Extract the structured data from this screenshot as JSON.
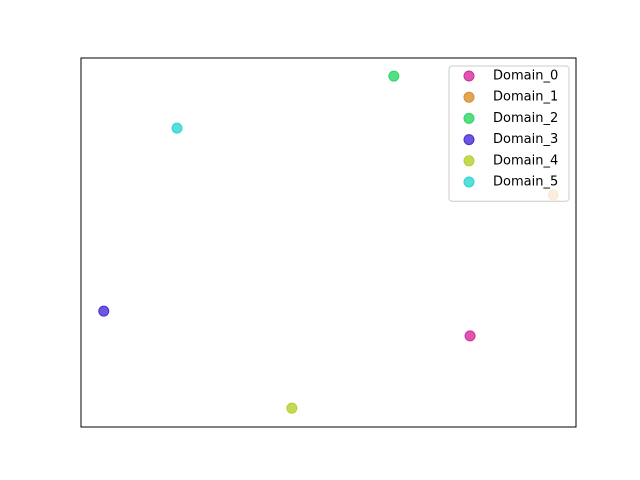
{
  "chart_data": {
    "type": "scatter",
    "xlim": [
      0,
      100
    ],
    "ylim": [
      0,
      100
    ],
    "legend": "upper right",
    "series": [
      {
        "name": "Domain_0",
        "color": "#d62c9b",
        "x": [
          78.6
        ],
        "y": [
          24.7
        ]
      },
      {
        "name": "Domain_1",
        "color": "#d98f2c",
        "x": [
          95.4
        ],
        "y": [
          62.9
        ]
      },
      {
        "name": "Domain_2",
        "color": "#2cd665",
        "x": [
          63.2
        ],
        "y": [
          95.1
        ]
      },
      {
        "name": "Domain_3",
        "color": "#4a2cd6",
        "x": [
          4.6
        ],
        "y": [
          31.4
        ]
      },
      {
        "name": "Domain_4",
        "color": "#b3d12c",
        "x": [
          42.6
        ],
        "y": [
          5.1
        ]
      },
      {
        "name": "Domain_5",
        "color": "#2cd6d1",
        "x": [
          19.4
        ],
        "y": [
          81.0
        ]
      }
    ]
  }
}
